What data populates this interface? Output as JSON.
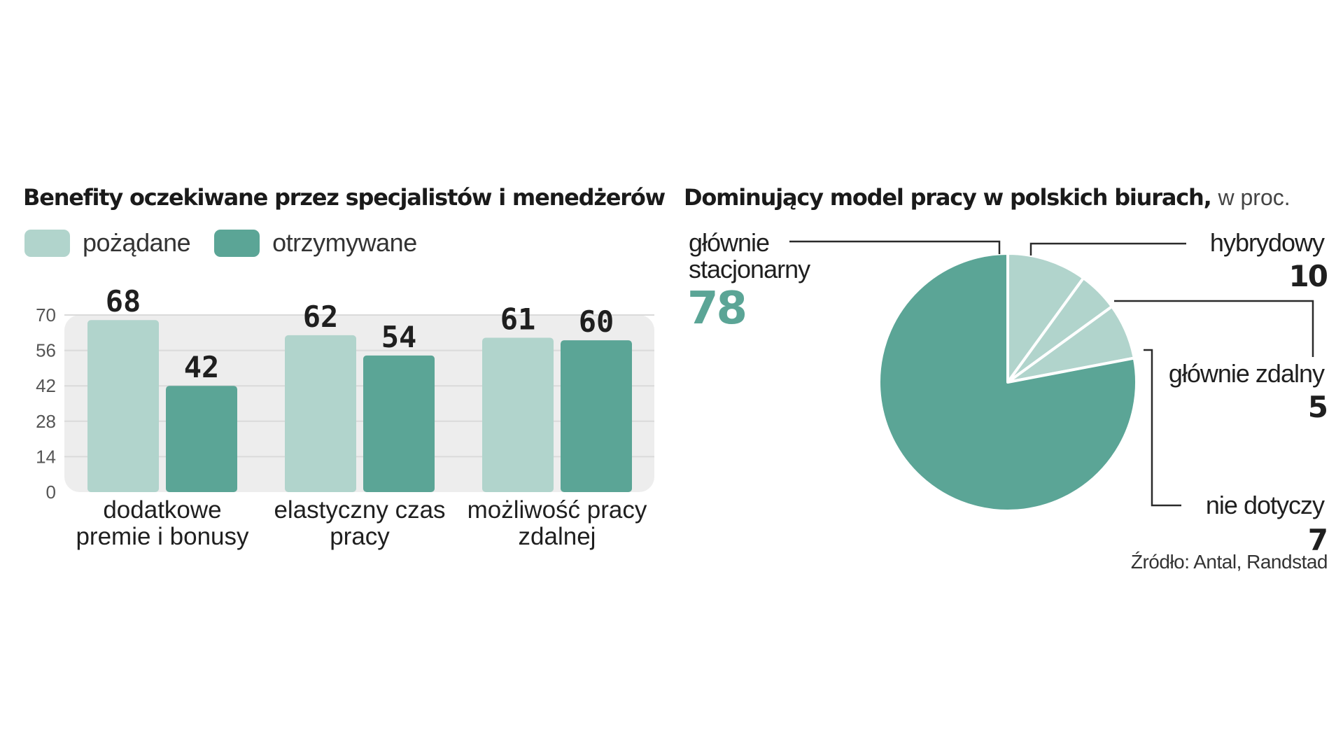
{
  "colors": {
    "desired": "#b1d4cc",
    "received": "#5ba596",
    "panel": "#ededed",
    "text": "#1a1a1a"
  },
  "chart_data": [
    {
      "type": "bar",
      "title": "Benefity oczekiwane przez specjalistów i menedżerów",
      "categories": [
        [
          "dodatkowe",
          "premie i bonusy"
        ],
        [
          "elastyczny czas",
          "pracy"
        ],
        [
          "możliwość pracy",
          "zdalnej"
        ]
      ],
      "series": [
        {
          "name": "pożądane",
          "values": [
            68,
            62,
            61
          ]
        },
        {
          "name": "otrzymywane",
          "values": [
            42,
            54,
            60
          ]
        }
      ],
      "yticks": [
        "0",
        "14",
        "28",
        "42",
        "56",
        "70"
      ],
      "ylim": [
        0,
        70
      ],
      "grid": true,
      "legend": "top-left"
    },
    {
      "type": "pie",
      "title": "Dominujący model pracy w polskich biurach,",
      "unit": "w proc.",
      "slices": [
        {
          "label": "hybrydowy",
          "value": 10
        },
        {
          "label": "głównie zdalny",
          "value": 5
        },
        {
          "label": "nie dotyczy",
          "value": 7
        },
        {
          "label": "głównie stacjonarny",
          "label_lines": [
            "głównie",
            "stacjonarny"
          ],
          "value": 78
        }
      ],
      "source": "Źródło: Antal, Randstad"
    }
  ]
}
